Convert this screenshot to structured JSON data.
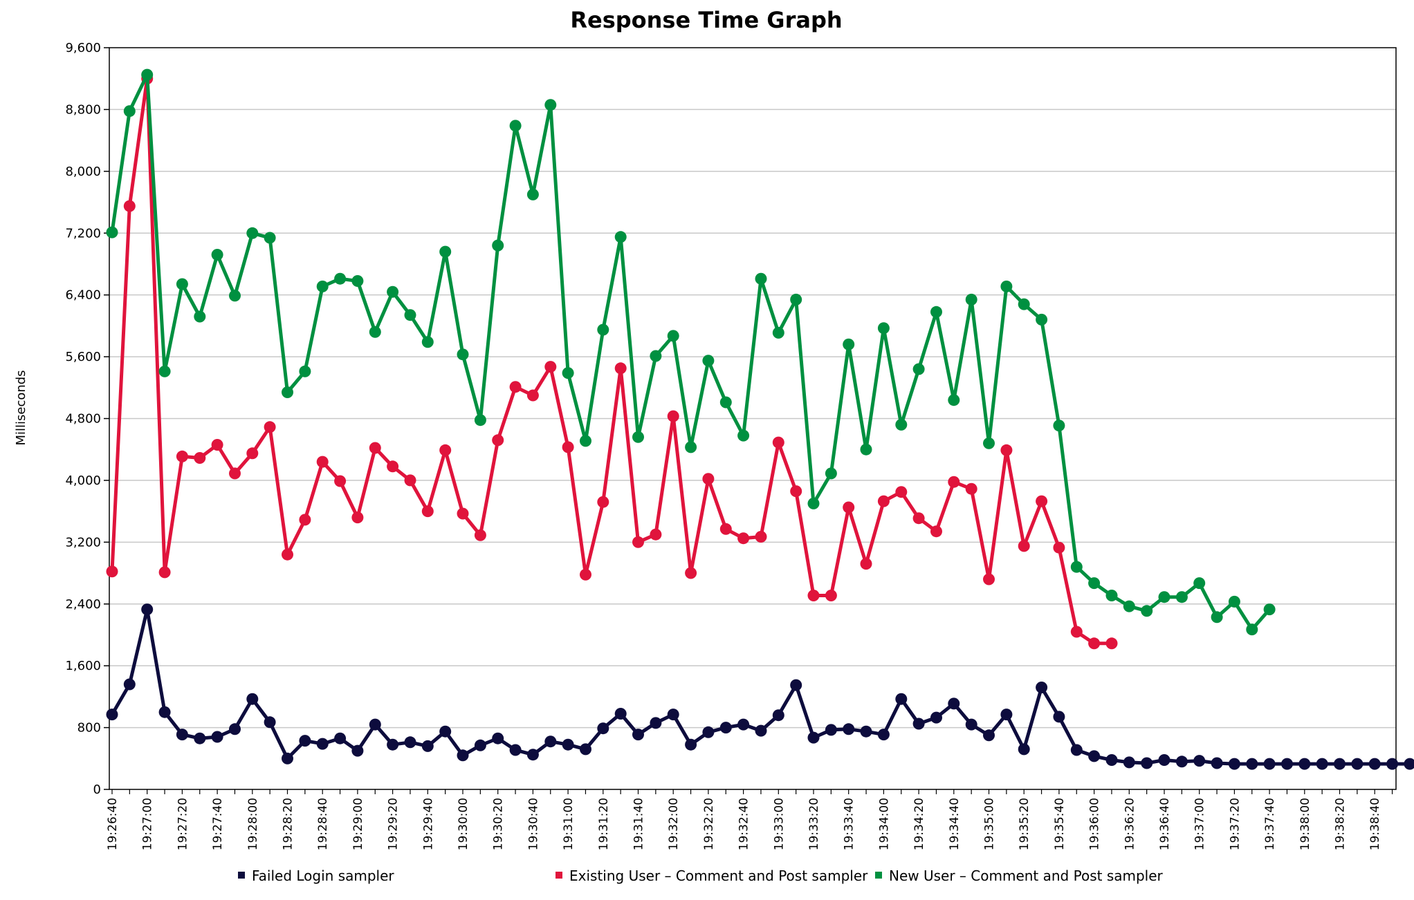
{
  "chart_data": {
    "type": "line",
    "title": "Response Time Graph",
    "xlabel": "",
    "ylabel": "Milliseconds",
    "ylim": [
      0,
      9600
    ],
    "yticks": [
      0,
      800,
      1600,
      2400,
      3200,
      4000,
      4800,
      5600,
      6400,
      7200,
      8000,
      8800,
      9600
    ],
    "ytick_labels": [
      "0",
      "800",
      "1,600",
      "2,400",
      "3,200",
      "4,000",
      "4,800",
      "5,600",
      "6,400",
      "7,200",
      "8,000",
      "8,800",
      "9,600"
    ],
    "x_tick_labels": [
      "19:26:40",
      "19:27:00",
      "19:27:20",
      "19:27:40",
      "19:28:00",
      "19:28:20",
      "19:28:40",
      "19:29:00",
      "19:29:20",
      "19:29:40",
      "19:30:00",
      "19:30:20",
      "19:30:40",
      "19:31:00",
      "19:31:20",
      "19:31:40",
      "19:32:00",
      "19:32:20",
      "19:32:40",
      "19:33:00",
      "19:33:20",
      "19:33:40",
      "19:34:00",
      "19:34:20",
      "19:34:40",
      "19:35:00",
      "19:35:20",
      "19:35:40",
      "19:36:00",
      "19:36:20",
      "19:36:40",
      "19:37:00",
      "19:37:20",
      "19:37:40",
      "19:38:00",
      "19:38:20",
      "19:38:40"
    ],
    "x_start": "19:26:40",
    "x_interval_seconds": 10,
    "grid": true,
    "legend_position": "bottom",
    "series": [
      {
        "name": "Failed Login sampler",
        "color": "#0d0c3d",
        "values": [
          970,
          1360,
          2330,
          1000,
          710,
          660,
          680,
          780,
          1170,
          870,
          400,
          630,
          590,
          660,
          500,
          840,
          580,
          610,
          560,
          750,
          440,
          570,
          660,
          510,
          450,
          620,
          580,
          520,
          790,
          980,
          710,
          860,
          970,
          580,
          740,
          800,
          840,
          760,
          960,
          1350,
          670,
          770,
          780,
          750,
          710,
          1170,
          850,
          930,
          1110,
          840,
          700,
          970,
          520,
          1320,
          940,
          510,
          430,
          380,
          350,
          340,
          380,
          360,
          370,
          340,
          330,
          330,
          330,
          330,
          330,
          330,
          330,
          330,
          330,
          330,
          330
        ],
        "x_offset": 0
      },
      {
        "name": "Existing User – Comment and Post sampler",
        "color": "#e0143c",
        "values": [
          2820,
          7550,
          9200,
          2810,
          4310,
          4290,
          4460,
          4090,
          4350,
          4690,
          3040,
          3490,
          4240,
          3990,
          3520,
          4420,
          4180,
          4000,
          3600,
          4390,
          3570,
          3290,
          4520,
          5210,
          5100,
          5470,
          4430,
          2780,
          3720,
          5450,
          3200,
          3300,
          4830,
          2800,
          4020,
          3370,
          3250,
          3270,
          4490,
          3860,
          2510,
          2510,
          3650,
          2920,
          3730,
          3850,
          3510,
          3340,
          3980,
          3890,
          2720,
          4390,
          3150,
          3730,
          3130,
          2040,
          1890,
          1890
        ],
        "x_offset": 0
      },
      {
        "name": "New User – Comment and Post sampler",
        "color": "#009040",
        "values": [
          7210,
          8780,
          9250,
          5410,
          6540,
          6120,
          6920,
          6390,
          7200,
          7140,
          5140,
          5410,
          6510,
          6610,
          6580,
          5920,
          6440,
          6140,
          5790,
          6960,
          5630,
          4780,
          7040,
          8590,
          7700,
          8860,
          5390,
          4510,
          5950,
          7150,
          4560,
          5610,
          5870,
          4430,
          5550,
          5010,
          4580,
          6610,
          5910,
          6340,
          3700,
          4090,
          5760,
          4400,
          5970,
          4720,
          5440,
          6180,
          5040,
          6340,
          4480,
          6510,
          6280,
          6080,
          4710,
          2880,
          2670,
          2510,
          2370,
          2310,
          2490,
          2490,
          2670,
          2230,
          2430,
          2070,
          2330
        ],
        "x_offset": 0
      }
    ]
  }
}
